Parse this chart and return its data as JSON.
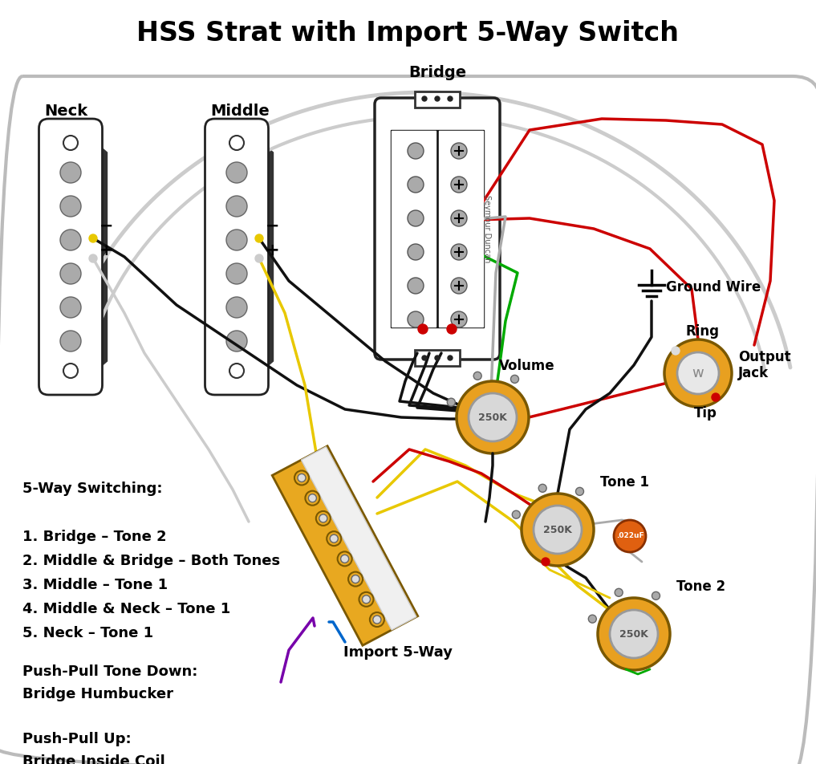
{
  "title": "HSS Strat with Import 5-Way Switch",
  "title_fontsize": 24,
  "title_fontweight": "bold",
  "background_color": "#ffffff",
  "switching_text": [
    "5-Way Switching:",
    "",
    "1. Bridge – Tone 2",
    "2. Middle & Bridge – Both Tones",
    "3. Middle – Tone 1",
    "4. Middle & Neck – Tone 1",
    "5. Neck – Tone 1"
  ],
  "pushpull_text": [
    "Push-Pull Tone Down:",
    "Bridge Humbucker",
    "",
    "Push-Pull Up:",
    "Bridge Inside Coil"
  ],
  "wire_colors": {
    "black": "#111111",
    "white": "#cccccc",
    "red": "#cc0000",
    "green": "#00aa00",
    "yellow": "#e8c800",
    "gray": "#888888",
    "purple": "#7700aa",
    "blue": "#0066cc",
    "bare": "#c8a000",
    "orange": "#e08000"
  },
  "pot_color": "#e8a020",
  "pot_inner_color": "#d8d8d8",
  "cap_color": "#e06010",
  "switch_color": "#e8a820",
  "switch_body_color": "#f0f0f0"
}
